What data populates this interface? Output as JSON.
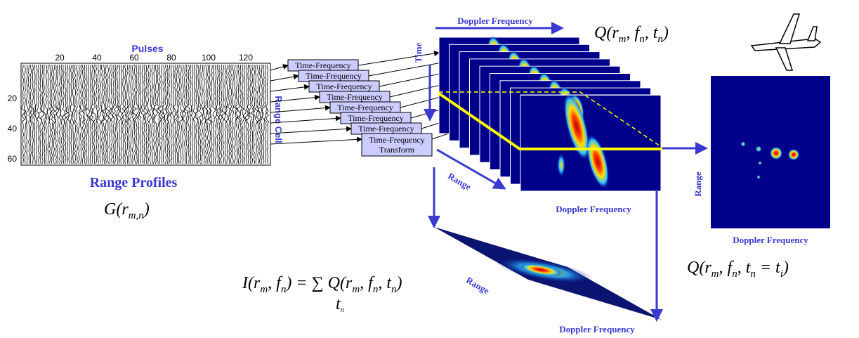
{
  "range_profiles": {
    "x_axis_label": "Pulses",
    "x_ticks": [
      "20",
      "40",
      "60",
      "80",
      "100",
      "120"
    ],
    "y_ticks": [
      "20",
      "40",
      "60"
    ],
    "y_axis_label": "Range Cell",
    "title": "Range Profiles",
    "formula": [
      {
        "text": "G(r",
        "sub": "m,n"
      },
      {
        "text": ")"
      }
    ]
  },
  "transforms": [
    "Time-Frequency",
    "Time-Frequency",
    "Time-Frequency",
    "Time-Frequency",
    "Time-Frequency",
    "Time-Frequency",
    "Time-Frequency",
    "Time-Frequency Transform"
  ],
  "stack": {
    "top_label": "Doppler Frequency",
    "time_label": "Time",
    "range_label": "Range",
    "bottom_label": "Doppler Frequency",
    "formula": [
      {
        "text": "Q(r",
        "sub": "m"
      },
      {
        "text": ", f",
        "sub": "n"
      },
      {
        "text": ", t",
        "sub": "n"
      },
      {
        "text": ")"
      }
    ]
  },
  "sum_image": {
    "range_label": "Range",
    "bottom_label": "Doppler Frequency",
    "formula": [
      {
        "text": "I(r",
        "sub": "m"
      },
      {
        "text": ", f",
        "sub": "n"
      },
      {
        "text": ") = ∑ Q(r",
        "sub": "m"
      },
      {
        "text": ", f",
        "sub": "n"
      },
      {
        "text": ", t",
        "sub": "n"
      },
      {
        "text": ")"
      }
    ],
    "sum_index": "t",
    "sum_index_sub": "n"
  },
  "snapshot": {
    "range_label": "Range",
    "bottom_label": "Doppler Frequency",
    "formula": [
      {
        "text": "Q(r",
        "sub": "m"
      },
      {
        "text": ", f",
        "sub": "n"
      },
      {
        "text": ", t",
        "sub": "n"
      },
      {
        "text": " = t",
        "sub": "i"
      },
      {
        "text": ")"
      }
    ]
  }
}
